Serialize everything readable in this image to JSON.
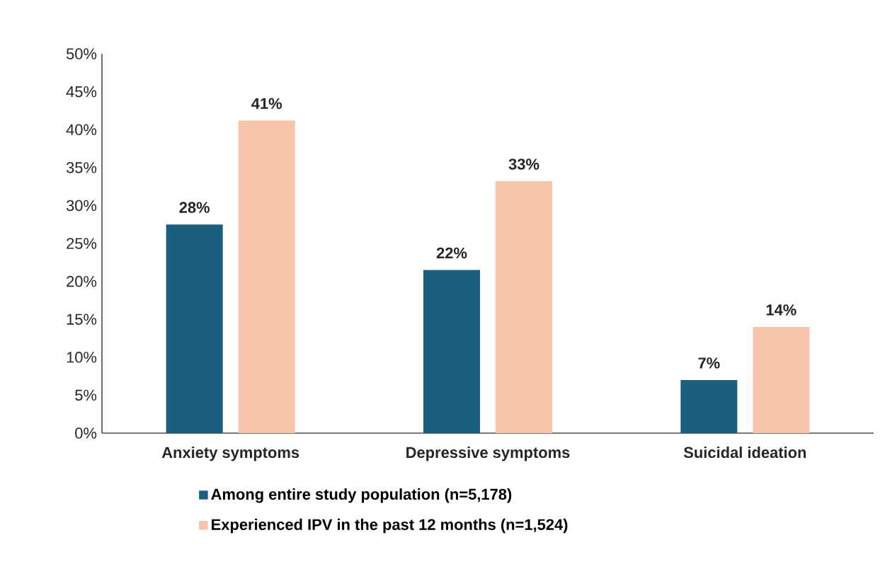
{
  "chart_data": {
    "type": "bar",
    "categories": [
      "Anxiety symptoms",
      "Depressive symptoms",
      "Suicidal ideation"
    ],
    "series": [
      {
        "name": "Among entire study population (n=5,178)",
        "color": "#1a5f7f",
        "values": [
          27.5,
          21.5,
          7.0
        ],
        "value_labels": [
          "28%",
          "22%",
          "7%"
        ]
      },
      {
        "name": "Experienced IPV in the past 12 months (n=1,524)",
        "color": "#f7c5aa",
        "values": [
          41.2,
          33.2,
          14.0
        ],
        "value_labels": [
          "41%",
          "33%",
          "14%"
        ]
      }
    ],
    "ylim": [
      0,
      50
    ],
    "yticks": [
      {
        "value": 0,
        "label": "0%"
      },
      {
        "value": 5,
        "label": "5%"
      },
      {
        "value": 10,
        "label": "10%"
      },
      {
        "value": 15,
        "label": "15%"
      },
      {
        "value": 20,
        "label": "20%"
      },
      {
        "value": 25,
        "label": "25%"
      },
      {
        "value": 30,
        "label": "30%"
      },
      {
        "value": 35,
        "label": "35%"
      },
      {
        "value": 40,
        "label": "40%"
      },
      {
        "value": 45,
        "label": "45%"
      },
      {
        "value": 50,
        "label": "50%"
      }
    ],
    "legend": "bottom"
  }
}
